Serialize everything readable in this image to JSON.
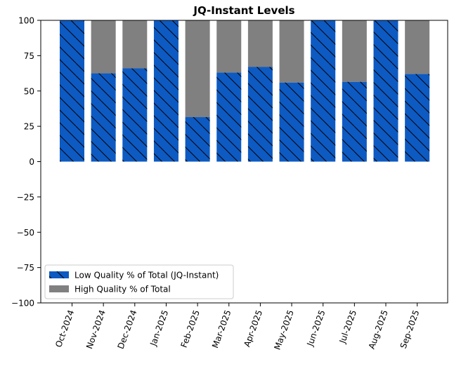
{
  "chart_data": {
    "type": "bar",
    "stacked": true,
    "title": "JQ-Instant Levels",
    "xlabel": "",
    "ylabel": "",
    "ylim": [
      -100,
      100
    ],
    "yticks": [
      100,
      75,
      50,
      25,
      0,
      -25,
      -50,
      -75,
      -100
    ],
    "ytick_labels": [
      "100",
      "75",
      "50",
      "25",
      "0",
      "−25",
      "−50",
      "−75",
      "−100"
    ],
    "categories": [
      "Oct-2024",
      "Nov-2024",
      "Dec-2024",
      "Jan-2025",
      "Feb-2025",
      "Mar-2025",
      "Apr-2025",
      "May-2025",
      "Jun-2025",
      "Jul-2025",
      "Aug-2025",
      "Sep-2025"
    ],
    "series": [
      {
        "name": "Low Quality % of Total (JQ-Instant)",
        "color": "#0d5ac2",
        "hatch": "\\",
        "values": [
          100,
          62.5,
          66,
          100,
          31.5,
          63,
          67,
          56,
          100,
          56.5,
          100,
          62
        ]
      },
      {
        "name": "High Quality % of Total",
        "color": "#808080",
        "hatch": "",
        "values": [
          0,
          37.5,
          34,
          0,
          68.5,
          37,
          33,
          44,
          0,
          43.5,
          0,
          38
        ]
      }
    ],
    "legend": "lower-left",
    "grid": false
  }
}
